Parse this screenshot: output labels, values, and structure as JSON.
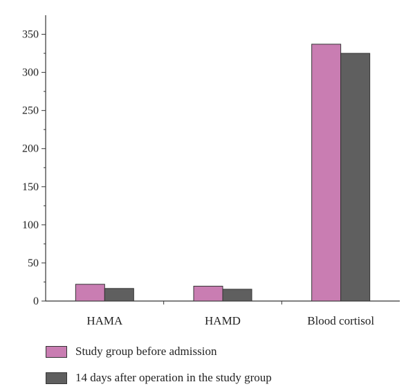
{
  "chart_data": {
    "type": "bar",
    "title": "",
    "xlabel": "",
    "ylabel": "",
    "categories": [
      "HAMA",
      "HAMD",
      "Blood cortisol"
    ],
    "series": [
      {
        "name": "Study group before admission",
        "values": [
          22,
          19.5,
          337
        ],
        "color": "#c97db2"
      },
      {
        "name": "14 days after operation in the study group",
        "values": [
          16.5,
          15.5,
          325
        ],
        "color": "#5f5f5f"
      }
    ],
    "ylim": [
      0,
      375
    ],
    "yticks": [
      0,
      50,
      100,
      150,
      200,
      250,
      300,
      350
    ],
    "grid": false,
    "legend_position": "bottom"
  }
}
